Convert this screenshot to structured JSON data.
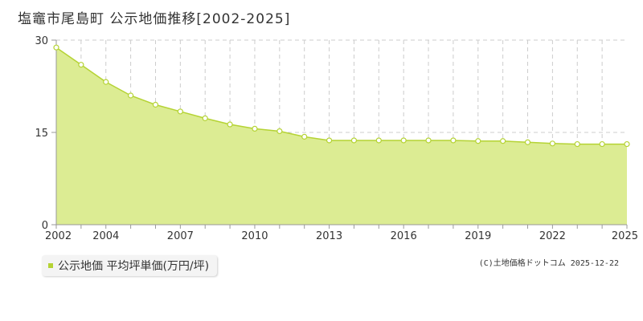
{
  "page": {
    "title": "塩竈市尾島町  公示地価推移[2002-2025]",
    "legend_label": "公示地価 平均坪単価(万円/坪)",
    "credit": "(C)土地価格ドットコム 2025-12-22"
  },
  "chart_data": {
    "type": "area",
    "title": "塩竈市尾島町  公示地価推移[2002-2025]",
    "x": [
      2002,
      2003,
      2004,
      2005,
      2006,
      2007,
      2008,
      2009,
      2010,
      2011,
      2012,
      2013,
      2014,
      2015,
      2016,
      2017,
      2018,
      2019,
      2020,
      2021,
      2022,
      2023,
      2024,
      2025
    ],
    "series": [
      {
        "name": "公示地価 平均坪単価(万円/坪)",
        "values": [
          28.8,
          26.0,
          23.2,
          21.0,
          19.5,
          18.4,
          17.3,
          16.3,
          15.6,
          15.2,
          14.3,
          13.7,
          13.7,
          13.7,
          13.7,
          13.7,
          13.7,
          13.6,
          13.6,
          13.4,
          13.2,
          13.1,
          13.1,
          13.1
        ]
      }
    ],
    "x_tick_labels": [
      "2002",
      "2004",
      "2007",
      "2010",
      "2013",
      "2016",
      "2019",
      "2022",
      "2025"
    ],
    "y_tick_labels": [
      "0",
      "15",
      "30"
    ],
    "xlim": [
      2002,
      2025
    ],
    "ylim": [
      0,
      30
    ],
    "xlabel": "",
    "ylabel": "",
    "grid": true,
    "colors": {
      "fill": "#dcec93",
      "line": "#b5d334",
      "marker_fill": "#ffffff",
      "grid": "#cccccc",
      "axis": "#999999"
    }
  }
}
